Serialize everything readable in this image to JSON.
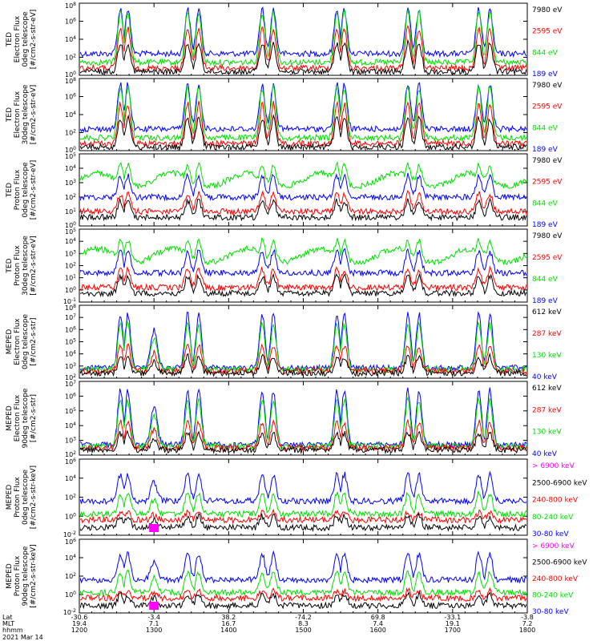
{
  "colors": {
    "blue": "#0000ff",
    "red": "#ff0000",
    "green": "#00e000",
    "black": "#000000",
    "magenta": "#ff00ff"
  },
  "panels": [
    {
      "ylabel": [
        "TED",
        "Electron Flux",
        "0deg telescope",
        "[#/cm2-s-str-eV]"
      ],
      "ytick_labels": [
        "10^8",
        "10^6",
        "10^4",
        "10^2",
        "10^0"
      ],
      "legend": [
        {
          "label": "7980 eV",
          "color": "#000000"
        },
        {
          "label": "2595 eV",
          "color": "#ff0000"
        },
        {
          "label": "844 eV",
          "color": "#00e000"
        },
        {
          "label": "189 eV",
          "color": "#0000ff"
        }
      ]
    },
    {
      "ylabel": [
        "TED",
        "Electron Flux",
        "30deg telescope",
        "[#/cm2-s-str-eV]"
      ],
      "ytick_labels": [
        "10^8",
        "10^6",
        "10^4",
        "10^2",
        "10^0"
      ],
      "legend": [
        {
          "label": "7980 eV",
          "color": "#000000"
        },
        {
          "label": "2595 eV",
          "color": "#ff0000"
        },
        {
          "label": "844 eV",
          "color": "#00e000"
        },
        {
          "label": "189 eV",
          "color": "#0000ff"
        }
      ]
    },
    {
      "ylabel": [
        "TED",
        "Proton Flux",
        "0deg telescope",
        "[#/cm2-s-str-eV]"
      ],
      "ytick_labels": [
        "10^5",
        "10^4",
        "10^3",
        "10^2",
        "10^1",
        "10^0"
      ],
      "legend": [
        {
          "label": "7980 eV",
          "color": "#000000"
        },
        {
          "label": "2595 eV",
          "color": "#ff0000"
        },
        {
          "label": "844 eV",
          "color": "#00e000"
        },
        {
          "label": "189 eV",
          "color": "#0000ff"
        }
      ]
    },
    {
      "ylabel": [
        "TED",
        "Proton Flux",
        "30deg telescope",
        "[#/cm2-s-str-eV]"
      ],
      "ytick_labels": [
        "10^5",
        "10^4",
        "10^3",
        "10^2",
        "10^1",
        "10^0",
        "10^-1"
      ],
      "legend": [
        {
          "label": "7980 eV",
          "color": "#000000"
        },
        {
          "label": "2595 eV",
          "color": "#ff0000"
        },
        {
          "label": "844 eV",
          "color": "#00e000"
        },
        {
          "label": "189 eV",
          "color": "#0000ff"
        }
      ]
    },
    {
      "ylabel": [
        "MEPED",
        "Electron Flux",
        "0deg telescope",
        "[#/cm2-s-str]"
      ],
      "ytick_labels": [
        "10^8",
        "10^7",
        "10^6",
        "10^5",
        "10^4",
        "10^3",
        "10^2"
      ],
      "legend": [
        {
          "label": "612 keV",
          "color": "#000000"
        },
        {
          "label": "287 keV",
          "color": "#ff0000"
        },
        {
          "label": "130 keV",
          "color": "#00e000"
        },
        {
          "label": "40 keV",
          "color": "#0000ff"
        }
      ]
    },
    {
      "ylabel": [
        "MEPED",
        "Electron Flux",
        "90deg telescope",
        "[#/cm2-s-str]"
      ],
      "ytick_labels": [
        "10^7",
        "10^6",
        "10^5",
        "10^4",
        "10^3",
        "10^2"
      ],
      "legend": [
        {
          "label": "612 keV",
          "color": "#000000"
        },
        {
          "label": "287 keV",
          "color": "#ff0000"
        },
        {
          "label": "130 keV",
          "color": "#00e000"
        },
        {
          "label": "40 keV",
          "color": "#0000ff"
        }
      ]
    },
    {
      "ylabel": [
        "MEPED",
        "Proton Flux",
        "0deg telescope",
        "[#/cm2-s-str-keV]"
      ],
      "ytick_labels": [
        "10^6",
        "10^4",
        "10^2",
        "10^0",
        "10^-2"
      ],
      "legend": [
        {
          "label": "> 6900 keV",
          "color": "#ff00ff"
        },
        {
          "label": "2500-6900 keV",
          "color": "#000000"
        },
        {
          "label": "240-800 keV",
          "color": "#ff0000"
        },
        {
          "label": "80-240 keV",
          "color": "#00e000"
        },
        {
          "label": "30-80 keV",
          "color": "#0000ff"
        }
      ]
    },
    {
      "ylabel": [
        "MEPED",
        "Proton Flux",
        "90deg telescope",
        "[#/cm2-s-str-keV]"
      ],
      "ytick_labels": [
        "10^6",
        "10^4",
        "10^2",
        "10^0",
        "10^-2"
      ],
      "legend": [
        {
          "label": "> 6900 keV",
          "color": "#ff00ff"
        },
        {
          "label": "2500-6900 keV",
          "color": "#000000"
        },
        {
          "label": "240-800 keV",
          "color": "#ff0000"
        },
        {
          "label": "80-240 keV",
          "color": "#00e000"
        },
        {
          "label": "30-80 keV",
          "color": "#0000ff"
        }
      ]
    }
  ],
  "xaxis": {
    "rows": [
      {
        "label": "Lat",
        "values": [
          "-30.6",
          "-3.4",
          "38.2",
          "-74.2",
          "69.8",
          "-33.1",
          "-3.8"
        ]
      },
      {
        "label": "MLT",
        "values": [
          "19.4",
          "7.1",
          "16.7",
          "8.3",
          "7.4",
          "19.1",
          "7.2"
        ]
      },
      {
        "label": "hhmm",
        "values": [
          "1200",
          "1300",
          "1400",
          "1500",
          "1600",
          "1700",
          "1800"
        ]
      }
    ],
    "date": "2021 Mar 14"
  },
  "chart_data": {
    "type": "line",
    "x": [
      "1200",
      "1300",
      "1400",
      "1500",
      "1600",
      "1700",
      "1800"
    ],
    "xlabel": "hhmm",
    "yscale": "log",
    "panels": [
      {
        "panel": "TED Electron Flux 0deg",
        "ylim": [
          1,
          100000000.0
        ],
        "series": [
          {
            "name": "7980 eV"
          },
          {
            "name": "2595 eV"
          },
          {
            "name": "844 eV"
          },
          {
            "name": "189 eV"
          }
        ]
      },
      {
        "panel": "TED Electron Flux 30deg",
        "ylim": [
          1,
          100000000.0
        ],
        "series": [
          {
            "name": "7980 eV"
          },
          {
            "name": "2595 eV"
          },
          {
            "name": "844 eV"
          },
          {
            "name": "189 eV"
          }
        ]
      },
      {
        "panel": "TED Proton Flux 0deg",
        "ylim": [
          1,
          100000.0
        ],
        "series": [
          {
            "name": "7980 eV"
          },
          {
            "name": "2595 eV"
          },
          {
            "name": "844 eV"
          },
          {
            "name": "189 eV"
          }
        ]
      },
      {
        "panel": "TED Proton Flux 30deg",
        "ylim": [
          0.1,
          100000.0
        ],
        "series": [
          {
            "name": "7980 eV"
          },
          {
            "name": "2595 eV"
          },
          {
            "name": "844 eV"
          },
          {
            "name": "189 eV"
          }
        ]
      },
      {
        "panel": "MEPED Electron Flux 0deg",
        "ylim": [
          100,
          100000000.0
        ],
        "series": [
          {
            "name": "612 keV"
          },
          {
            "name": "287 keV"
          },
          {
            "name": "130 keV"
          },
          {
            "name": "40 keV"
          }
        ]
      },
      {
        "panel": "MEPED Electron Flux 90deg",
        "ylim": [
          100,
          10000000.0
        ],
        "series": [
          {
            "name": "612 keV"
          },
          {
            "name": "287 keV"
          },
          {
            "name": "130 keV"
          },
          {
            "name": "40 keV"
          }
        ]
      },
      {
        "panel": "MEPED Proton Flux 0deg",
        "ylim": [
          0.01,
          1000000.0
        ],
        "series": [
          {
            "name": "> 6900 keV"
          },
          {
            "name": "2500-6900 keV"
          },
          {
            "name": "240-800 keV"
          },
          {
            "name": "80-240 keV"
          },
          {
            "name": "30-80 keV"
          }
        ]
      },
      {
        "panel": "MEPED Proton Flux 90deg",
        "ylim": [
          0.01,
          1000000.0
        ],
        "series": [
          {
            "name": "> 6900 keV"
          },
          {
            "name": "2500-6900 keV"
          },
          {
            "name": "240-800 keV"
          },
          {
            "name": "80-240 keV"
          },
          {
            "name": "30-80 keV"
          }
        ]
      }
    ]
  }
}
